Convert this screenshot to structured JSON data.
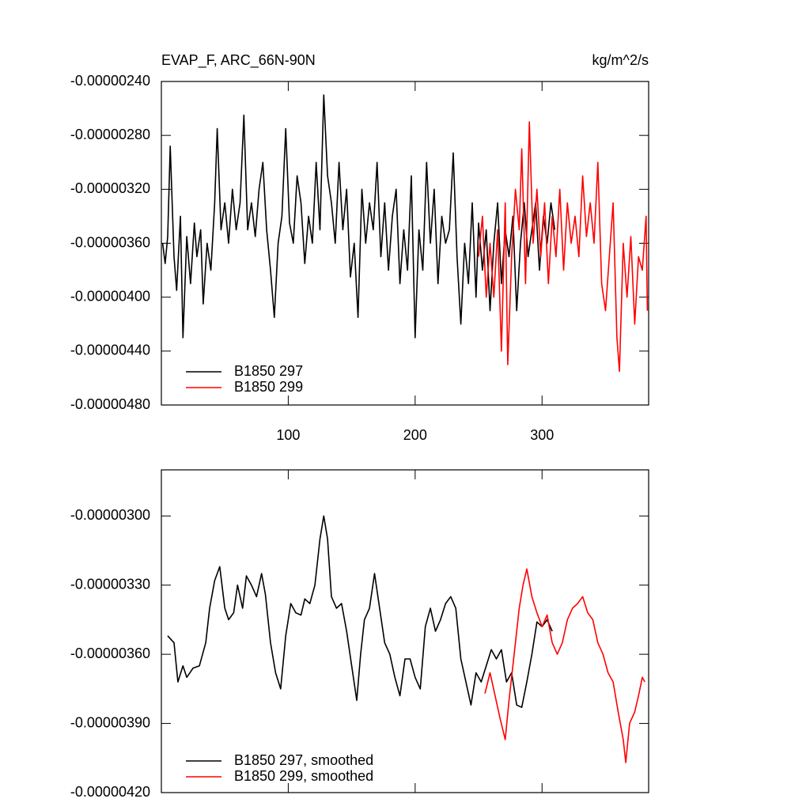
{
  "chart_data": [
    {
      "type": "line",
      "title": "EVAP_F, ARC_66N-90N",
      "units": "kg/m^2/s",
      "xlim": [
        0,
        384
      ],
      "xticks": [
        100,
        200,
        300
      ],
      "xtick_labels": true,
      "ylim": [
        -4.8e-06,
        -2.4e-06
      ],
      "yticks": [
        {
          "value": -4.8e-06,
          "label": "-0.00000480"
        },
        {
          "value": -4.4e-06,
          "label": "-0.00000440"
        },
        {
          "value": -4e-06,
          "label": "-0.00000400"
        },
        {
          "value": -3.6e-06,
          "label": "-0.00000360"
        },
        {
          "value": -3.2e-06,
          "label": "-0.00000320"
        },
        {
          "value": -2.8e-06,
          "label": "-0.00000280"
        },
        {
          "value": -2.4e-06,
          "label": "-0.00000240"
        }
      ],
      "series": [
        {
          "name": "B1850 297",
          "color": "#000000",
          "x": [
            1,
            3,
            5,
            7,
            10,
            12,
            15,
            17,
            20,
            23,
            26,
            28,
            31,
            33,
            36,
            39,
            42,
            44,
            47,
            50,
            53,
            56,
            59,
            62,
            65,
            68,
            71,
            74,
            77,
            80,
            83,
            86,
            89,
            92,
            95,
            98,
            101,
            104,
            107,
            110,
            113,
            116,
            119,
            122,
            125,
            128,
            131,
            134,
            137,
            140,
            143,
            146,
            149,
            152,
            155,
            158,
            161,
            164,
            167,
            170,
            173,
            176,
            179,
            182,
            185,
            188,
            191,
            194,
            197,
            200,
            203,
            206,
            209,
            212,
            215,
            218,
            221,
            224,
            227,
            230,
            233,
            236,
            239,
            242,
            245,
            248,
            250,
            253,
            256,
            259,
            262,
            265,
            268,
            271,
            274,
            277,
            280,
            283,
            286,
            289,
            292,
            295,
            298,
            301,
            304,
            307,
            310
          ],
          "values": [
            -3.6e-06,
            -3.75e-06,
            -3.55e-06,
            -2.88e-06,
            -3.7e-06,
            -3.95e-06,
            -3.4e-06,
            -4.3e-06,
            -3.55e-06,
            -3.9e-06,
            -3.45e-06,
            -3.7e-06,
            -3.5e-06,
            -4.05e-06,
            -3.6e-06,
            -3.8e-06,
            -3.3e-06,
            -2.75e-06,
            -3.5e-06,
            -3.3e-06,
            -3.6e-06,
            -3.2e-06,
            -3.5e-06,
            -3.3e-06,
            -2.65e-06,
            -3.5e-06,
            -3.3e-06,
            -3.55e-06,
            -3.2e-06,
            -3e-06,
            -3.5e-06,
            -3.8e-06,
            -4.15e-06,
            -3.6e-06,
            -3.4e-06,
            -2.75e-06,
            -3.45e-06,
            -3.6e-06,
            -3.1e-06,
            -3.3e-06,
            -3.75e-06,
            -3.4e-06,
            -3.6e-06,
            -3e-06,
            -3.5e-06,
            -2.5e-06,
            -3.1e-06,
            -3.3e-06,
            -3.6e-06,
            -3e-06,
            -3.5e-06,
            -3.2e-06,
            -3.85e-06,
            -3.6e-06,
            -4.15e-06,
            -3.2e-06,
            -3.6e-06,
            -3.3e-06,
            -3.5e-06,
            -3e-06,
            -3.7e-06,
            -3.3e-06,
            -3.8e-06,
            -3.4e-06,
            -3.2e-06,
            -3.9e-06,
            -3.5e-06,
            -3.8e-06,
            -3.1e-06,
            -4.3e-06,
            -3.5e-06,
            -3.8e-06,
            -3e-06,
            -3.6e-06,
            -3.2e-06,
            -3.9e-06,
            -3.4e-06,
            -3.6e-06,
            -3.5e-06,
            -2.93e-06,
            -3.7e-06,
            -4.2e-06,
            -3.6e-06,
            -3.9e-06,
            -3.3e-06,
            -4e-06,
            -3.45e-06,
            -3.8e-06,
            -3.5e-06,
            -4.1e-06,
            -3.6e-06,
            -3.3e-06,
            -3.9e-06,
            -3.5e-06,
            -3.7e-06,
            -3.4e-06,
            -4.1e-06,
            -3.6e-06,
            -3.3e-06,
            -3.7e-06,
            -3.5e-06,
            -3.3e-06,
            -3.8e-06,
            -3.4e-06,
            -3.6e-06,
            -3.3e-06,
            -3.5e-06
          ]
        },
        {
          "name": "B1850 299",
          "color": "#ff0000",
          "x": [
            250,
            253,
            256,
            259,
            262,
            265,
            268,
            271,
            273,
            276,
            279,
            282,
            284,
            287,
            290,
            293,
            296,
            299,
            302,
            305,
            308,
            311,
            314,
            317,
            320,
            323,
            326,
            329,
            332,
            335,
            338,
            341,
            344,
            347,
            350,
            353,
            356,
            359,
            361,
            364,
            367,
            370,
            373,
            376,
            379,
            382,
            383
          ],
          "values": [
            -3.7e-06,
            -3.4e-06,
            -4e-06,
            -3.6e-06,
            -4e-06,
            -3.5e-06,
            -4.4e-06,
            -3.3e-06,
            -4.5e-06,
            -3.7e-06,
            -3.2e-06,
            -3.5e-06,
            -2.9e-06,
            -3.9e-06,
            -2.7e-06,
            -3.6e-06,
            -3.2e-06,
            -3.7e-06,
            -3.3e-06,
            -3.9e-06,
            -3.4e-06,
            -3.7e-06,
            -3.2e-06,
            -3.8e-06,
            -3.3e-06,
            -3.6e-06,
            -3.4e-06,
            -3.7e-06,
            -3.1e-06,
            -3.55e-06,
            -3.3e-06,
            -3.6e-06,
            -3e-06,
            -3.9e-06,
            -4.1e-06,
            -3.7e-06,
            -3.3e-06,
            -4.3e-06,
            -4.55e-06,
            -3.6e-06,
            -4e-06,
            -3.55e-06,
            -4.2e-06,
            -3.7e-06,
            -3.8e-06,
            -3.4e-06,
            -4.1e-06
          ]
        }
      ]
    },
    {
      "type": "line",
      "xlim": [
        0,
        384
      ],
      "xticks": [
        100,
        200,
        300
      ],
      "xtick_labels": false,
      "ylim": [
        -4.2e-06,
        -2.8e-06
      ],
      "yticks": [
        {
          "value": -4.2e-06,
          "label": "-0.00000420"
        },
        {
          "value": -3.9e-06,
          "label": "-0.00000390"
        },
        {
          "value": -3.6e-06,
          "label": "-0.00000360"
        },
        {
          "value": -3.3e-06,
          "label": "-0.00000330"
        },
        {
          "value": -3e-06,
          "label": "-0.00000300"
        }
      ],
      "series": [
        {
          "name": "B1850 297, smoothed",
          "color": "#000000",
          "x": [
            5,
            10,
            13,
            17,
            20,
            25,
            30,
            35,
            38,
            42,
            46,
            50,
            53,
            57,
            60,
            64,
            67,
            71,
            75,
            79,
            82,
            86,
            90,
            94,
            98,
            102,
            106,
            110,
            113,
            117,
            121,
            125,
            128,
            131,
            134,
            138,
            142,
            146,
            150,
            154,
            157,
            160,
            164,
            168,
            172,
            176,
            180,
            184,
            188,
            192,
            196,
            200,
            204,
            208,
            212,
            216,
            220,
            224,
            228,
            232,
            236,
            240,
            244,
            248,
            252,
            256,
            260,
            264,
            268,
            272,
            276,
            280,
            284,
            288,
            292,
            296,
            300,
            304,
            308
          ],
          "values": [
            -3.52e-06,
            -3.55e-06,
            -3.72e-06,
            -3.65e-06,
            -3.7e-06,
            -3.66e-06,
            -3.65e-06,
            -3.55e-06,
            -3.4e-06,
            -3.28e-06,
            -3.22e-06,
            -3.4e-06,
            -3.45e-06,
            -3.42e-06,
            -3.3e-06,
            -3.4e-06,
            -3.26e-06,
            -3.3e-06,
            -3.35e-06,
            -3.25e-06,
            -3.34e-06,
            -3.55e-06,
            -3.68e-06,
            -3.75e-06,
            -3.52e-06,
            -3.38e-06,
            -3.42e-06,
            -3.43e-06,
            -3.36e-06,
            -3.38e-06,
            -3.3e-06,
            -3.1e-06,
            -3e-06,
            -3.1e-06,
            -3.35e-06,
            -3.4e-06,
            -3.38e-06,
            -3.5e-06,
            -3.65e-06,
            -3.8e-06,
            -3.6e-06,
            -3.45e-06,
            -3.4e-06,
            -3.25e-06,
            -3.4e-06,
            -3.55e-06,
            -3.6e-06,
            -3.7e-06,
            -3.78e-06,
            -3.62e-06,
            -3.62e-06,
            -3.7e-06,
            -3.75e-06,
            -3.48e-06,
            -3.4e-06,
            -3.5e-06,
            -3.45e-06,
            -3.38e-06,
            -3.35e-06,
            -3.4e-06,
            -3.62e-06,
            -3.72e-06,
            -3.82e-06,
            -3.68e-06,
            -3.72e-06,
            -3.65e-06,
            -3.58e-06,
            -3.62e-06,
            -3.58e-06,
            -3.72e-06,
            -3.68e-06,
            -3.82e-06,
            -3.83e-06,
            -3.72e-06,
            -3.6e-06,
            -3.46e-06,
            -3.48e-06,
            -3.45e-06,
            -3.5e-06
          ]
        },
        {
          "name": "B1850 299, smoothed",
          "color": "#ff0000",
          "x": [
            255,
            259,
            263,
            267,
            271,
            274,
            278,
            282,
            285,
            288,
            292,
            296,
            300,
            304,
            308,
            312,
            316,
            320,
            324,
            328,
            332,
            336,
            340,
            344,
            348,
            352,
            356,
            360,
            364,
            366,
            369,
            373,
            376,
            379,
            381
          ],
          "values": [
            -3.77e-06,
            -3.68e-06,
            -3.78e-06,
            -3.88e-06,
            -3.97e-06,
            -3.8e-06,
            -3.6e-06,
            -3.4e-06,
            -3.3e-06,
            -3.23e-06,
            -3.35e-06,
            -3.42e-06,
            -3.48e-06,
            -3.43e-06,
            -3.55e-06,
            -3.6e-06,
            -3.55e-06,
            -3.45e-06,
            -3.4e-06,
            -3.38e-06,
            -3.35e-06,
            -3.42e-06,
            -3.45e-06,
            -3.55e-06,
            -3.6e-06,
            -3.68e-06,
            -3.72e-06,
            -3.85e-06,
            -3.97e-06,
            -4.07e-06,
            -3.9e-06,
            -3.85e-06,
            -3.78e-06,
            -3.7e-06,
            -3.72e-06
          ]
        }
      ]
    }
  ]
}
